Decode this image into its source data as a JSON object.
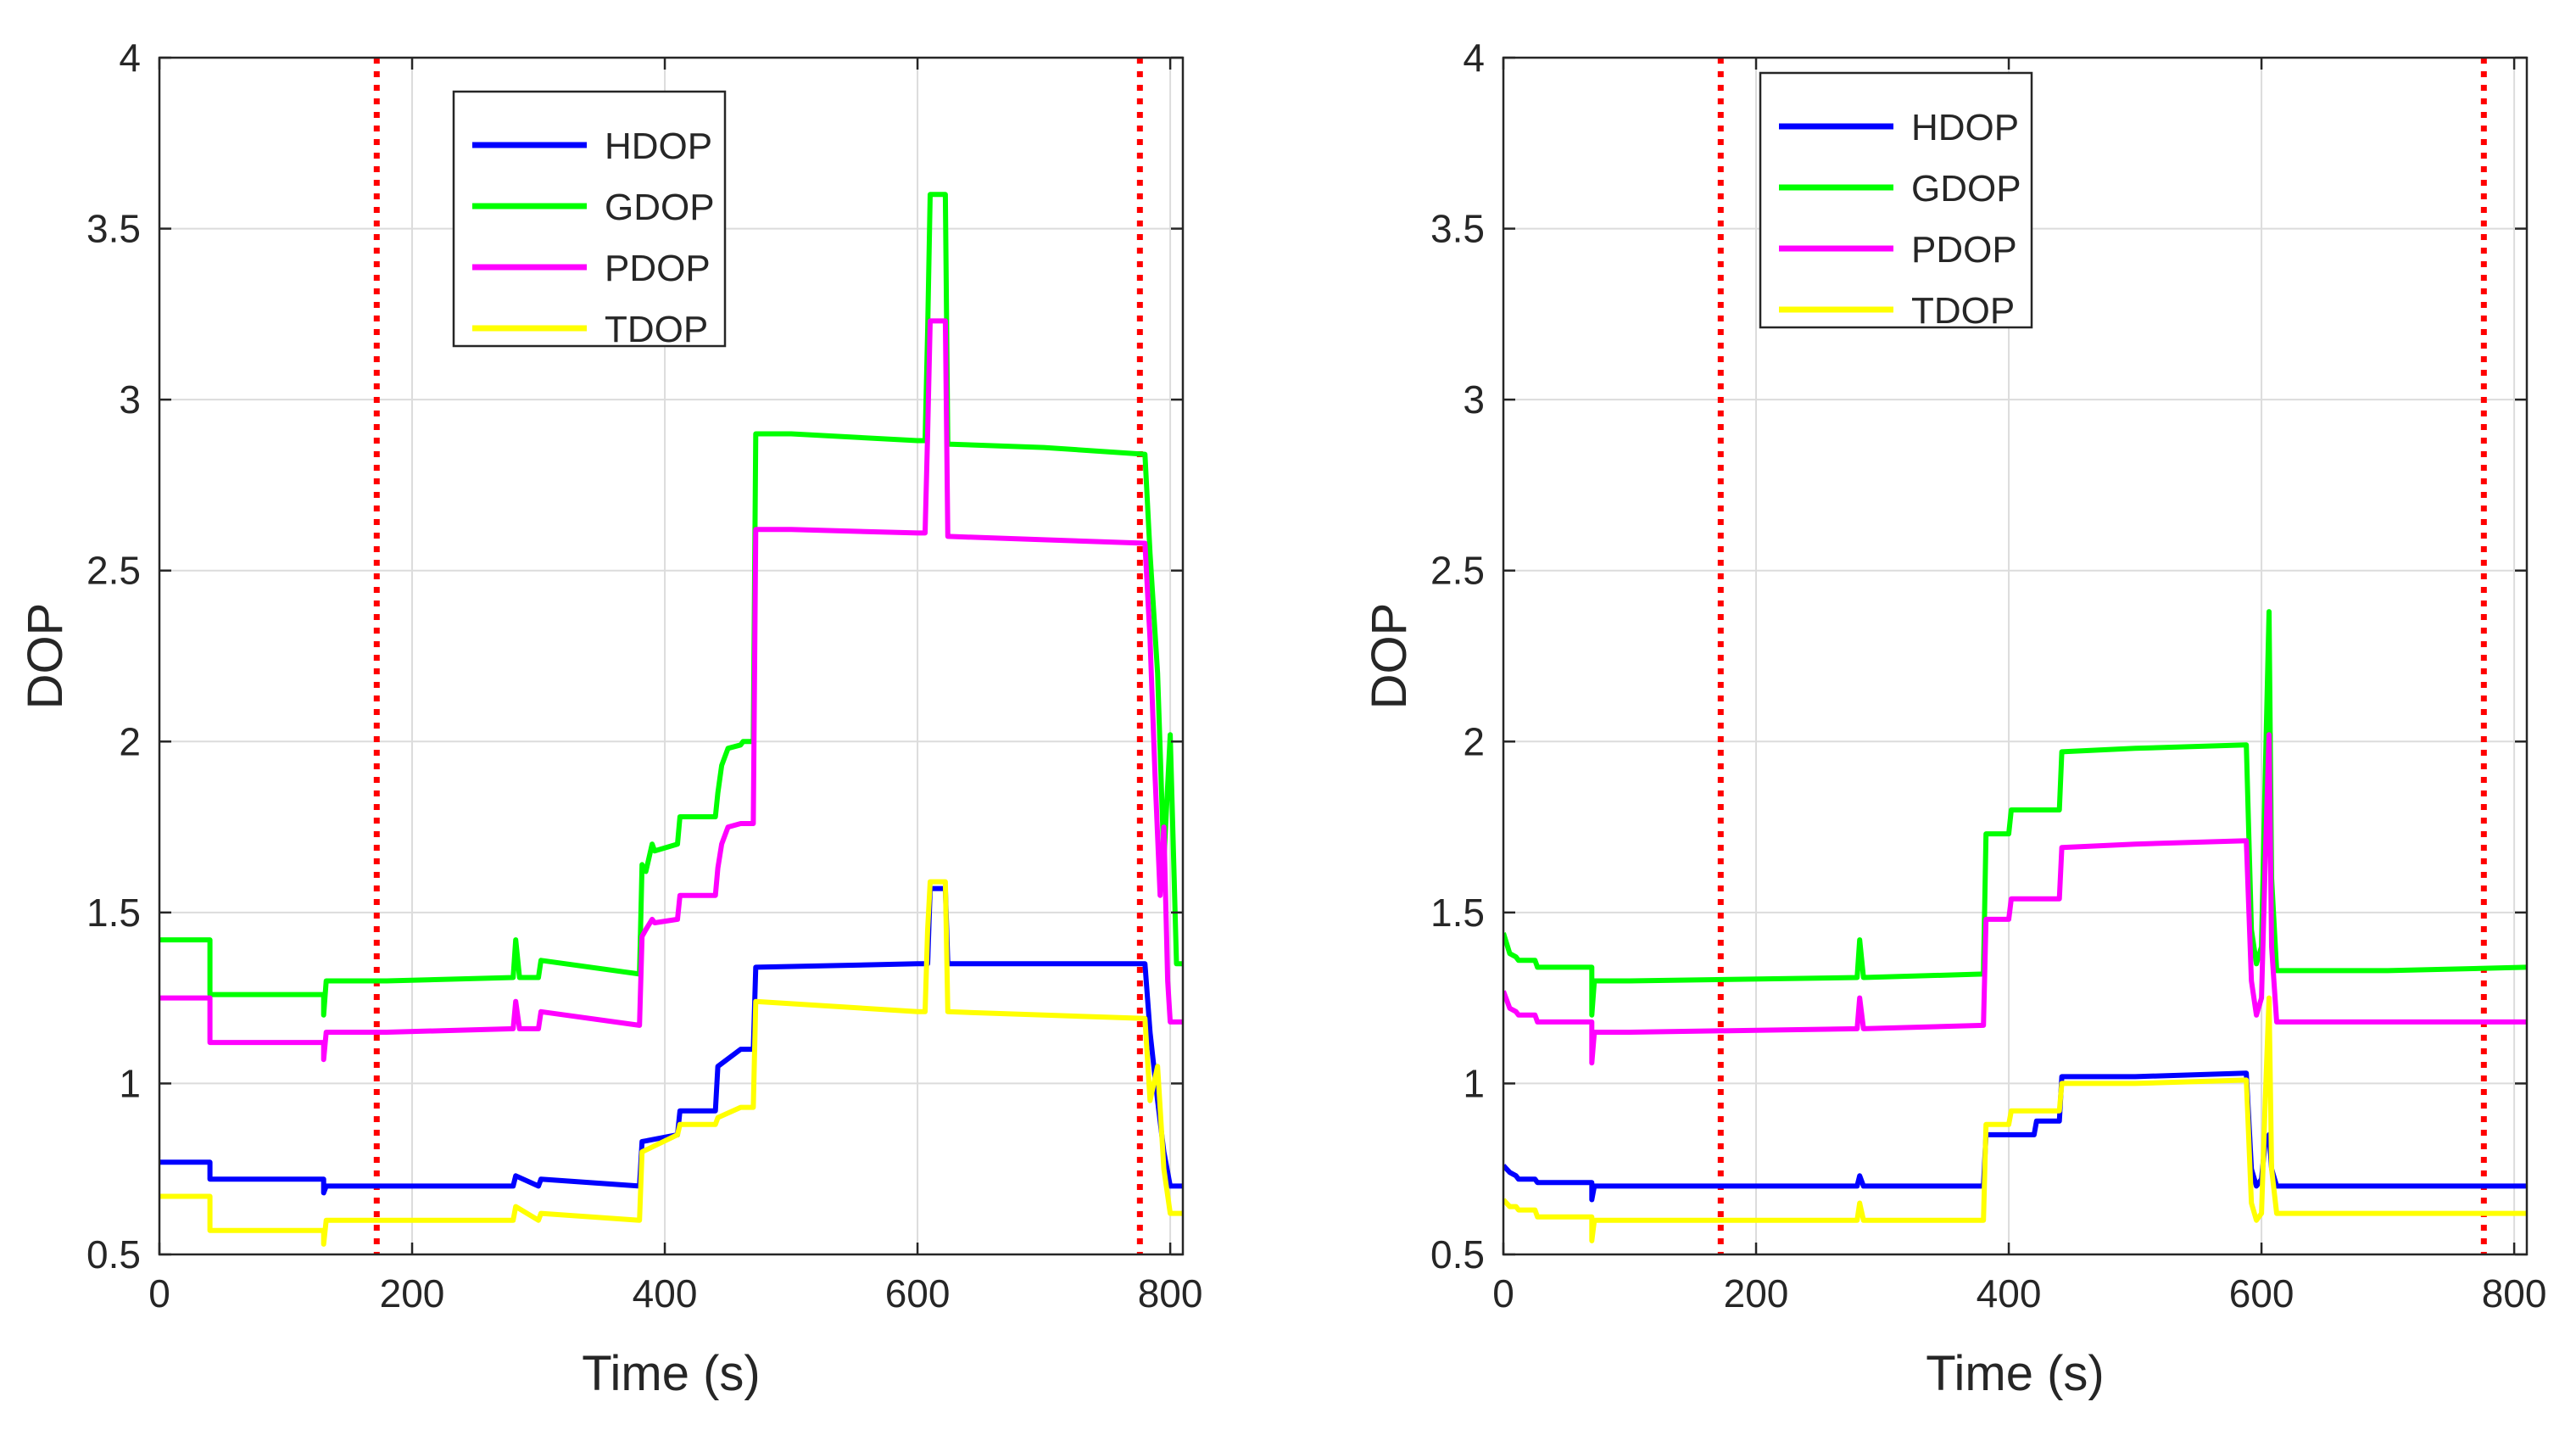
{
  "chart_data": [
    {
      "type": "line",
      "title": "",
      "xlabel": "Time (s)",
      "ylabel": "DOP",
      "xlim": [
        0,
        810
      ],
      "ylim": [
        0.5,
        4
      ],
      "xticks": [
        0,
        200,
        400,
        600,
        800
      ],
      "yticks": [
        0.5,
        1,
        1.5,
        2,
        2.5,
        3,
        3.5,
        4
      ],
      "xtick_labels": [
        "0",
        "200",
        "400",
        "600",
        "800"
      ],
      "ytick_labels": [
        "0.5",
        "1",
        "1.5",
        "2",
        "2.5",
        "3",
        "3.5",
        "4"
      ],
      "grid": true,
      "legend_position": "top-center",
      "vlines": [
        {
          "x": 172,
          "color": "#ff0000",
          "style": "dotted"
        },
        {
          "x": 776,
          "color": "#ff0000",
          "style": "dotted"
        }
      ],
      "series": [
        {
          "name": "HDOP",
          "color": "#0000ff",
          "x": [
            0,
            40,
            40,
            130,
            130,
            132,
            180,
            280,
            282,
            300,
            302,
            380,
            382,
            410,
            412,
            440,
            442,
            460,
            470,
            472,
            600,
            608,
            610,
            622,
            624,
            700,
            780,
            784,
            790,
            795,
            800,
            810
          ],
          "y": [
            0.77,
            0.77,
            0.72,
            0.72,
            0.68,
            0.7,
            0.7,
            0.7,
            0.73,
            0.7,
            0.72,
            0.7,
            0.83,
            0.85,
            0.92,
            0.92,
            1.05,
            1.1,
            1.1,
            1.34,
            1.35,
            1.35,
            1.57,
            1.57,
            1.35,
            1.35,
            1.35,
            1.15,
            0.95,
            0.8,
            0.7,
            0.7
          ]
        },
        {
          "name": "GDOP",
          "color": "#00ff00",
          "x": [
            0,
            40,
            40,
            130,
            130,
            132,
            180,
            280,
            282,
            285,
            300,
            302,
            380,
            382,
            385,
            390,
            392,
            410,
            412,
            440,
            442,
            445,
            450,
            460,
            462,
            470,
            472,
            500,
            600,
            606,
            608,
            610,
            622,
            624,
            700,
            780,
            784,
            790,
            795,
            800,
            805,
            810
          ],
          "y": [
            1.42,
            1.42,
            1.26,
            1.26,
            1.2,
            1.3,
            1.3,
            1.31,
            1.42,
            1.31,
            1.31,
            1.36,
            1.32,
            1.64,
            1.62,
            1.7,
            1.68,
            1.7,
            1.78,
            1.78,
            1.85,
            1.93,
            1.98,
            1.99,
            2.0,
            2.0,
            2.9,
            2.9,
            2.88,
            2.88,
            3.2,
            3.6,
            3.6,
            2.87,
            2.86,
            2.84,
            2.55,
            2.2,
            1.65,
            2.02,
            1.35,
            1.35
          ]
        },
        {
          "name": "PDOP",
          "color": "#ff00ff",
          "x": [
            0,
            40,
            40,
            130,
            130,
            132,
            180,
            280,
            282,
            285,
            300,
            302,
            380,
            382,
            385,
            390,
            392,
            410,
            412,
            440,
            442,
            445,
            450,
            460,
            462,
            470,
            472,
            500,
            600,
            606,
            608,
            610,
            622,
            624,
            700,
            780,
            784,
            788,
            792,
            795,
            798,
            800,
            810
          ],
          "y": [
            1.25,
            1.25,
            1.12,
            1.12,
            1.07,
            1.15,
            1.15,
            1.16,
            1.24,
            1.16,
            1.16,
            1.21,
            1.17,
            1.43,
            1.45,
            1.48,
            1.47,
            1.48,
            1.55,
            1.55,
            1.63,
            1.7,
            1.75,
            1.76,
            1.76,
            1.76,
            2.62,
            2.62,
            2.61,
            2.61,
            2.9,
            3.23,
            3.23,
            2.6,
            2.59,
            2.58,
            2.3,
            1.9,
            1.55,
            1.75,
            1.3,
            1.18,
            1.18
          ]
        },
        {
          "name": "TDOP",
          "color": "#ffff00",
          "x": [
            0,
            40,
            40,
            130,
            130,
            132,
            180,
            280,
            282,
            300,
            302,
            380,
            382,
            410,
            412,
            440,
            442,
            460,
            470,
            472,
            600,
            606,
            608,
            610,
            622,
            624,
            700,
            780,
            784,
            790,
            795,
            800,
            810
          ],
          "y": [
            0.67,
            0.67,
            0.57,
            0.57,
            0.53,
            0.6,
            0.6,
            0.6,
            0.64,
            0.6,
            0.62,
            0.6,
            0.8,
            0.85,
            0.88,
            0.88,
            0.9,
            0.93,
            0.93,
            1.24,
            1.21,
            1.21,
            1.45,
            1.59,
            1.59,
            1.21,
            1.2,
            1.19,
            0.95,
            1.05,
            0.75,
            0.62,
            0.62
          ]
        }
      ]
    },
    {
      "type": "line",
      "title": "",
      "xlabel": "Time (s)",
      "ylabel": "DOP",
      "xlim": [
        0,
        810
      ],
      "ylim": [
        0.5,
        4
      ],
      "xticks": [
        0,
        200,
        400,
        600,
        800
      ],
      "yticks": [
        0.5,
        1,
        1.5,
        2,
        2.5,
        3,
        3.5,
        4
      ],
      "xtick_labels": [
        "0",
        "200",
        "400",
        "600",
        "800"
      ],
      "ytick_labels": [
        "0.5",
        "1",
        "1.5",
        "2",
        "2.5",
        "3",
        "3.5",
        "4"
      ],
      "grid": true,
      "legend_position": "top-left",
      "vlines": [
        {
          "x": 172,
          "color": "#ff0000",
          "style": "dotted"
        },
        {
          "x": 776,
          "color": "#ff0000",
          "style": "dotted"
        }
      ],
      "series": [
        {
          "name": "HDOP",
          "color": "#0000ff",
          "x": [
            0,
            5,
            10,
            12,
            25,
            27,
            70,
            70,
            72,
            100,
            280,
            282,
            285,
            380,
            382,
            400,
            420,
            422,
            440,
            442,
            500,
            588,
            592,
            596,
            600,
            603,
            606,
            608,
            612,
            630,
            700,
            810
          ],
          "y": [
            0.76,
            0.74,
            0.73,
            0.72,
            0.72,
            0.71,
            0.71,
            0.66,
            0.7,
            0.7,
            0.7,
            0.73,
            0.7,
            0.7,
            0.85,
            0.85,
            0.85,
            0.89,
            0.89,
            1.02,
            1.02,
            1.03,
            0.75,
            0.7,
            0.72,
            0.83,
            0.85,
            0.75,
            0.7,
            0.7,
            0.7,
            0.7
          ]
        },
        {
          "name": "GDOP",
          "color": "#00ff00",
          "x": [
            0,
            5,
            10,
            12,
            25,
            27,
            70,
            70,
            72,
            100,
            280,
            282,
            285,
            380,
            382,
            400,
            402,
            440,
            442,
            500,
            588,
            592,
            596,
            600,
            603,
            606,
            608,
            612,
            630,
            700,
            810
          ],
          "y": [
            1.44,
            1.38,
            1.37,
            1.36,
            1.36,
            1.34,
            1.34,
            1.2,
            1.3,
            1.3,
            1.31,
            1.42,
            1.31,
            1.32,
            1.73,
            1.73,
            1.8,
            1.8,
            1.97,
            1.98,
            1.99,
            1.45,
            1.35,
            1.4,
            1.9,
            2.38,
            1.6,
            1.33,
            1.33,
            1.33,
            1.34
          ]
        },
        {
          "name": "PDOP",
          "color": "#ff00ff",
          "x": [
            0,
            5,
            10,
            12,
            25,
            27,
            70,
            70,
            72,
            100,
            280,
            282,
            285,
            380,
            382,
            400,
            402,
            440,
            442,
            500,
            588,
            592,
            596,
            600,
            603,
            606,
            608,
            612,
            630,
            700,
            810
          ],
          "y": [
            1.27,
            1.22,
            1.21,
            1.2,
            1.2,
            1.18,
            1.18,
            1.06,
            1.15,
            1.15,
            1.16,
            1.25,
            1.16,
            1.17,
            1.48,
            1.48,
            1.54,
            1.54,
            1.69,
            1.7,
            1.71,
            1.3,
            1.2,
            1.25,
            1.65,
            2.02,
            1.4,
            1.18,
            1.18,
            1.18,
            1.18
          ]
        },
        {
          "name": "TDOP",
          "color": "#ffff00",
          "x": [
            0,
            5,
            10,
            12,
            25,
            27,
            70,
            70,
            72,
            100,
            280,
            282,
            285,
            380,
            382,
            400,
            402,
            440,
            442,
            500,
            588,
            592,
            596,
            600,
            603,
            606,
            608,
            612,
            630,
            700,
            810
          ],
          "y": [
            0.66,
            0.64,
            0.64,
            0.63,
            0.63,
            0.61,
            0.61,
            0.54,
            0.6,
            0.6,
            0.6,
            0.65,
            0.6,
            0.6,
            0.88,
            0.88,
            0.92,
            0.92,
            1.0,
            1.0,
            1.01,
            0.65,
            0.6,
            0.62,
            0.95,
            1.25,
            0.75,
            0.62,
            0.62,
            0.62,
            0.62
          ]
        }
      ]
    }
  ]
}
